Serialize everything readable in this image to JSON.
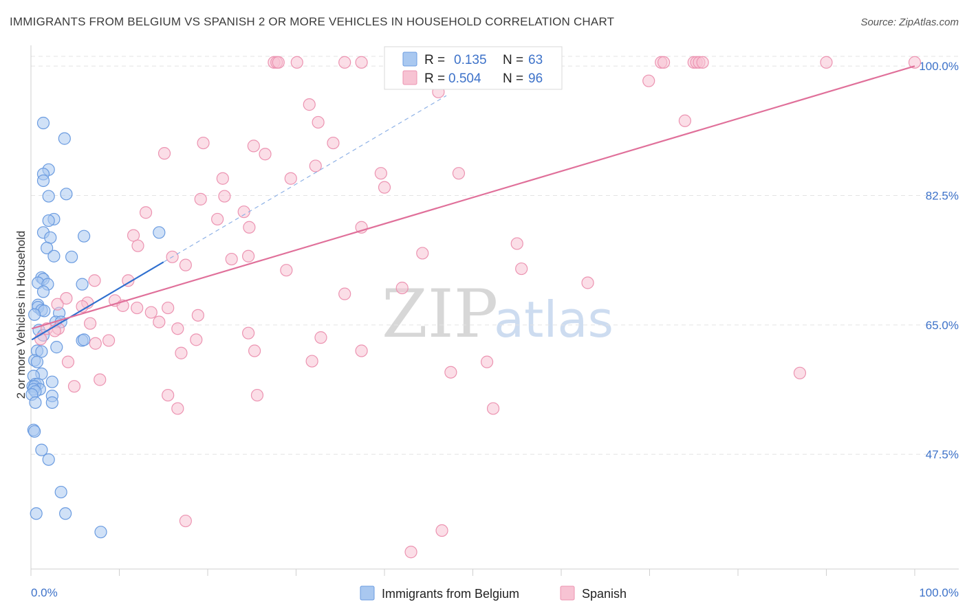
{
  "title": "IMMIGRANTS FROM BELGIUM VS SPANISH 2 OR MORE VEHICLES IN HOUSEHOLD CORRELATION CHART",
  "source": "Source: ZipAtlas.com",
  "watermark": {
    "zip": "ZIP",
    "atlas": "atlas"
  },
  "colors": {
    "belgium_fill": "#a9c8f0",
    "belgium_stroke": "#6a9be0",
    "belgium_line": "#2f6fcf",
    "spanish_fill": "#f7c3d3",
    "spanish_stroke": "#ec93b1",
    "spanish_line": "#e0709a",
    "tick_label": "#3d72c9",
    "grid": "#e3e3e3"
  },
  "legend": {
    "rows": [
      {
        "r_label": "R =",
        "r_value": "0.135",
        "n_label": "N =",
        "n_value": "63"
      },
      {
        "r_label": "R =",
        "r_value": "0.504",
        "n_label": "N =",
        "n_value": "96"
      }
    ]
  },
  "chart_data": {
    "type": "scatter",
    "title": "IMMIGRANTS FROM BELGIUM VS SPANISH 2 OR MORE VEHICLES IN HOUSEHOLD CORRELATION CHART",
    "xlabel": "",
    "ylabel": "2 or more Vehicles in Household",
    "xlim": [
      0,
      100
    ],
    "ylim": [
      32,
      101.5
    ],
    "x_tick_labels": [
      "0.0%",
      "100.0%"
    ],
    "y_ticks": [
      {
        "value": 100,
        "label": "100.0%"
      },
      {
        "value": 82.5,
        "label": "82.5%"
      },
      {
        "value": 65,
        "label": "65.0%"
      },
      {
        "value": 47.5,
        "label": "47.5%"
      }
    ],
    "grid": true,
    "series": [
      {
        "name": "Immigrants from Belgium",
        "r": 0.135,
        "n": 63,
        "trend": {
          "x0": 0.1,
          "y0": 63.0,
          "x1": 15.0,
          "y1": 73.5,
          "dashed_x1": 47.0,
          "dashed_y1": 96.0
        },
        "points": [
          [
            1.4,
            92.3
          ],
          [
            3.8,
            90.2
          ],
          [
            2.0,
            86.0
          ],
          [
            1.4,
            85.4
          ],
          [
            1.4,
            84.5
          ],
          [
            4.0,
            82.7
          ],
          [
            2.0,
            82.4
          ],
          [
            2.6,
            79.3
          ],
          [
            2.0,
            79.1
          ],
          [
            6.0,
            77.0
          ],
          [
            1.4,
            77.5
          ],
          [
            2.2,
            76.8
          ],
          [
            14.5,
            77.5
          ],
          [
            1.8,
            75.4
          ],
          [
            2.6,
            74.3
          ],
          [
            4.6,
            74.2
          ],
          [
            1.2,
            71.4
          ],
          [
            1.4,
            71.2
          ],
          [
            0.8,
            70.7
          ],
          [
            1.9,
            70.5
          ],
          [
            5.8,
            70.5
          ],
          [
            1.4,
            69.5
          ],
          [
            0.8,
            67.7
          ],
          [
            0.8,
            67.4
          ],
          [
            1.2,
            67.0
          ],
          [
            1.5,
            66.9
          ],
          [
            3.2,
            66.6
          ],
          [
            0.4,
            66.4
          ],
          [
            2.8,
            65.4
          ],
          [
            3.4,
            65.4
          ],
          [
            0.9,
            64.3
          ],
          [
            1.4,
            63.6
          ],
          [
            5.8,
            62.9
          ],
          [
            6.0,
            63.0
          ],
          [
            2.9,
            62.0
          ],
          [
            0.7,
            61.5
          ],
          [
            1.2,
            61.4
          ],
          [
            0.4,
            60.2
          ],
          [
            0.7,
            60.0
          ],
          [
            1.2,
            58.4
          ],
          [
            0.3,
            58.1
          ],
          [
            2.4,
            57.3
          ],
          [
            0.5,
            57.0
          ],
          [
            0.8,
            57.0
          ],
          [
            0.2,
            56.7
          ],
          [
            0.4,
            56.7
          ],
          [
            1.0,
            56.3
          ],
          [
            0.3,
            56.3
          ],
          [
            0.5,
            56.0
          ],
          [
            0.1,
            55.6
          ],
          [
            2.4,
            55.4
          ],
          [
            0.5,
            54.5
          ],
          [
            2.4,
            54.5
          ],
          [
            0.3,
            50.8
          ],
          [
            0.4,
            50.6
          ],
          [
            1.2,
            48.1
          ],
          [
            2.0,
            46.8
          ],
          [
            3.4,
            42.4
          ],
          [
            0.6,
            39.5
          ],
          [
            3.9,
            39.5
          ],
          [
            7.9,
            37.0
          ]
        ]
      },
      {
        "name": "Spanish",
        "r": 0.504,
        "n": 96,
        "trend": {
          "x0": 0.1,
          "y0": 64.5,
          "x1": 100.0,
          "y1": 100.0
        },
        "points": [
          [
            27.5,
            100.5
          ],
          [
            27.8,
            100.5
          ],
          [
            28.0,
            100.5
          ],
          [
            30.1,
            100.5
          ],
          [
            35.5,
            100.5
          ],
          [
            37.4,
            100.5
          ],
          [
            47.0,
            100.5
          ],
          [
            56.5,
            100.5
          ],
          [
            71.3,
            100.5
          ],
          [
            71.6,
            100.5
          ],
          [
            75.0,
            100.5
          ],
          [
            75.3,
            100.5
          ],
          [
            75.6,
            100.5
          ],
          [
            76.0,
            100.5
          ],
          [
            90.0,
            100.5
          ],
          [
            100.0,
            100.5
          ],
          [
            69.9,
            98.0
          ],
          [
            46.1,
            96.5
          ],
          [
            31.5,
            94.8
          ],
          [
            32.5,
            92.4
          ],
          [
            74.0,
            92.6
          ],
          [
            15.1,
            88.2
          ],
          [
            19.5,
            89.6
          ],
          [
            25.2,
            89.2
          ],
          [
            34.2,
            89.6
          ],
          [
            26.5,
            88.1
          ],
          [
            32.2,
            86.5
          ],
          [
            39.6,
            85.5
          ],
          [
            48.4,
            85.5
          ],
          [
            21.7,
            84.8
          ],
          [
            29.4,
            84.8
          ],
          [
            40.0,
            83.6
          ],
          [
            19.2,
            82.0
          ],
          [
            21.9,
            82.4
          ],
          [
            24.1,
            80.3
          ],
          [
            13.0,
            80.2
          ],
          [
            21.1,
            79.3
          ],
          [
            24.7,
            78.2
          ],
          [
            37.4,
            78.2
          ],
          [
            11.6,
            77.1
          ],
          [
            12.1,
            75.7
          ],
          [
            16.0,
            74.2
          ],
          [
            22.7,
            73.9
          ],
          [
            55.0,
            76.0
          ],
          [
            44.3,
            74.7
          ],
          [
            17.5,
            73.1
          ],
          [
            24.6,
            74.3
          ],
          [
            55.5,
            72.6
          ],
          [
            7.2,
            71.0
          ],
          [
            11.0,
            71.0
          ],
          [
            28.9,
            72.4
          ],
          [
            63.0,
            70.7
          ],
          [
            42.0,
            70.0
          ],
          [
            35.5,
            69.2
          ],
          [
            4.0,
            68.6
          ],
          [
            6.4,
            68.0
          ],
          [
            9.5,
            68.3
          ],
          [
            10.4,
            67.6
          ],
          [
            15.5,
            67.3
          ],
          [
            18.9,
            66.3
          ],
          [
            3.0,
            67.8
          ],
          [
            5.8,
            67.5
          ],
          [
            12.0,
            67.3
          ],
          [
            13.6,
            66.7
          ],
          [
            3.1,
            64.5
          ],
          [
            6.7,
            65.2
          ],
          [
            14.5,
            65.4
          ],
          [
            1.8,
            64.5
          ],
          [
            2.7,
            64.2
          ],
          [
            8.8,
            62.9
          ],
          [
            16.6,
            64.5
          ],
          [
            24.6,
            63.9
          ],
          [
            18.7,
            63.0
          ],
          [
            32.8,
            63.3
          ],
          [
            37.4,
            61.5
          ],
          [
            7.3,
            62.5
          ],
          [
            1.1,
            63.1
          ],
          [
            17.0,
            61.2
          ],
          [
            25.3,
            61.5
          ],
          [
            4.2,
            60.0
          ],
          [
            31.8,
            60.1
          ],
          [
            51.6,
            60.0
          ],
          [
            47.5,
            58.6
          ],
          [
            87.0,
            58.5
          ],
          [
            7.8,
            57.6
          ],
          [
            4.9,
            56.7
          ],
          [
            25.6,
            55.5
          ],
          [
            15.5,
            55.5
          ],
          [
            16.6,
            53.7
          ],
          [
            52.3,
            53.7
          ],
          [
            17.5,
            38.5
          ],
          [
            46.5,
            37.2
          ],
          [
            43.0,
            34.3
          ]
        ]
      }
    ]
  },
  "bottom_legend": [
    {
      "label": "Immigrants from Belgium"
    },
    {
      "label": "Spanish"
    }
  ]
}
